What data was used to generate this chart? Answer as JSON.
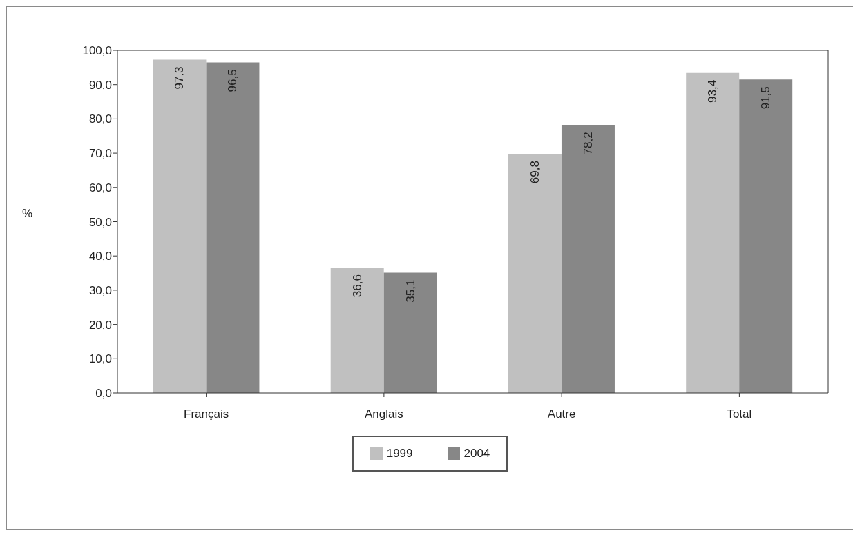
{
  "chart_data": {
    "type": "bar",
    "ylabel": "%",
    "categories": [
      "Français",
      "Anglais",
      "Autre",
      "Total"
    ],
    "series": [
      {
        "name": "1999",
        "color": "#c0c0c0",
        "values": [
          97.3,
          36.6,
          69.8,
          93.4
        ],
        "value_labels": [
          "97,3",
          "36,6",
          "69,8",
          "93,4"
        ]
      },
      {
        "name": "2004",
        "color": "#878787",
        "values": [
          96.5,
          35.1,
          78.2,
          91.5
        ],
        "value_labels": [
          "96,5",
          "35,1",
          "78,2",
          "91,5"
        ]
      }
    ],
    "ylim": [
      0,
      100
    ],
    "yticks": [
      {
        "value": 0,
        "label": "0,0"
      },
      {
        "value": 10,
        "label": "10,0"
      },
      {
        "value": 20,
        "label": "20,0"
      },
      {
        "value": 30,
        "label": "30,0"
      },
      {
        "value": 40,
        "label": "40,0"
      },
      {
        "value": 50,
        "label": "50,0"
      },
      {
        "value": 60,
        "label": "60,0"
      },
      {
        "value": 70,
        "label": "70,0"
      },
      {
        "value": 80,
        "label": "80,0"
      },
      {
        "value": 90,
        "label": "90,0"
      },
      {
        "value": 100,
        "label": "100,0"
      }
    ],
    "grid": false,
    "legend": "bottom"
  }
}
